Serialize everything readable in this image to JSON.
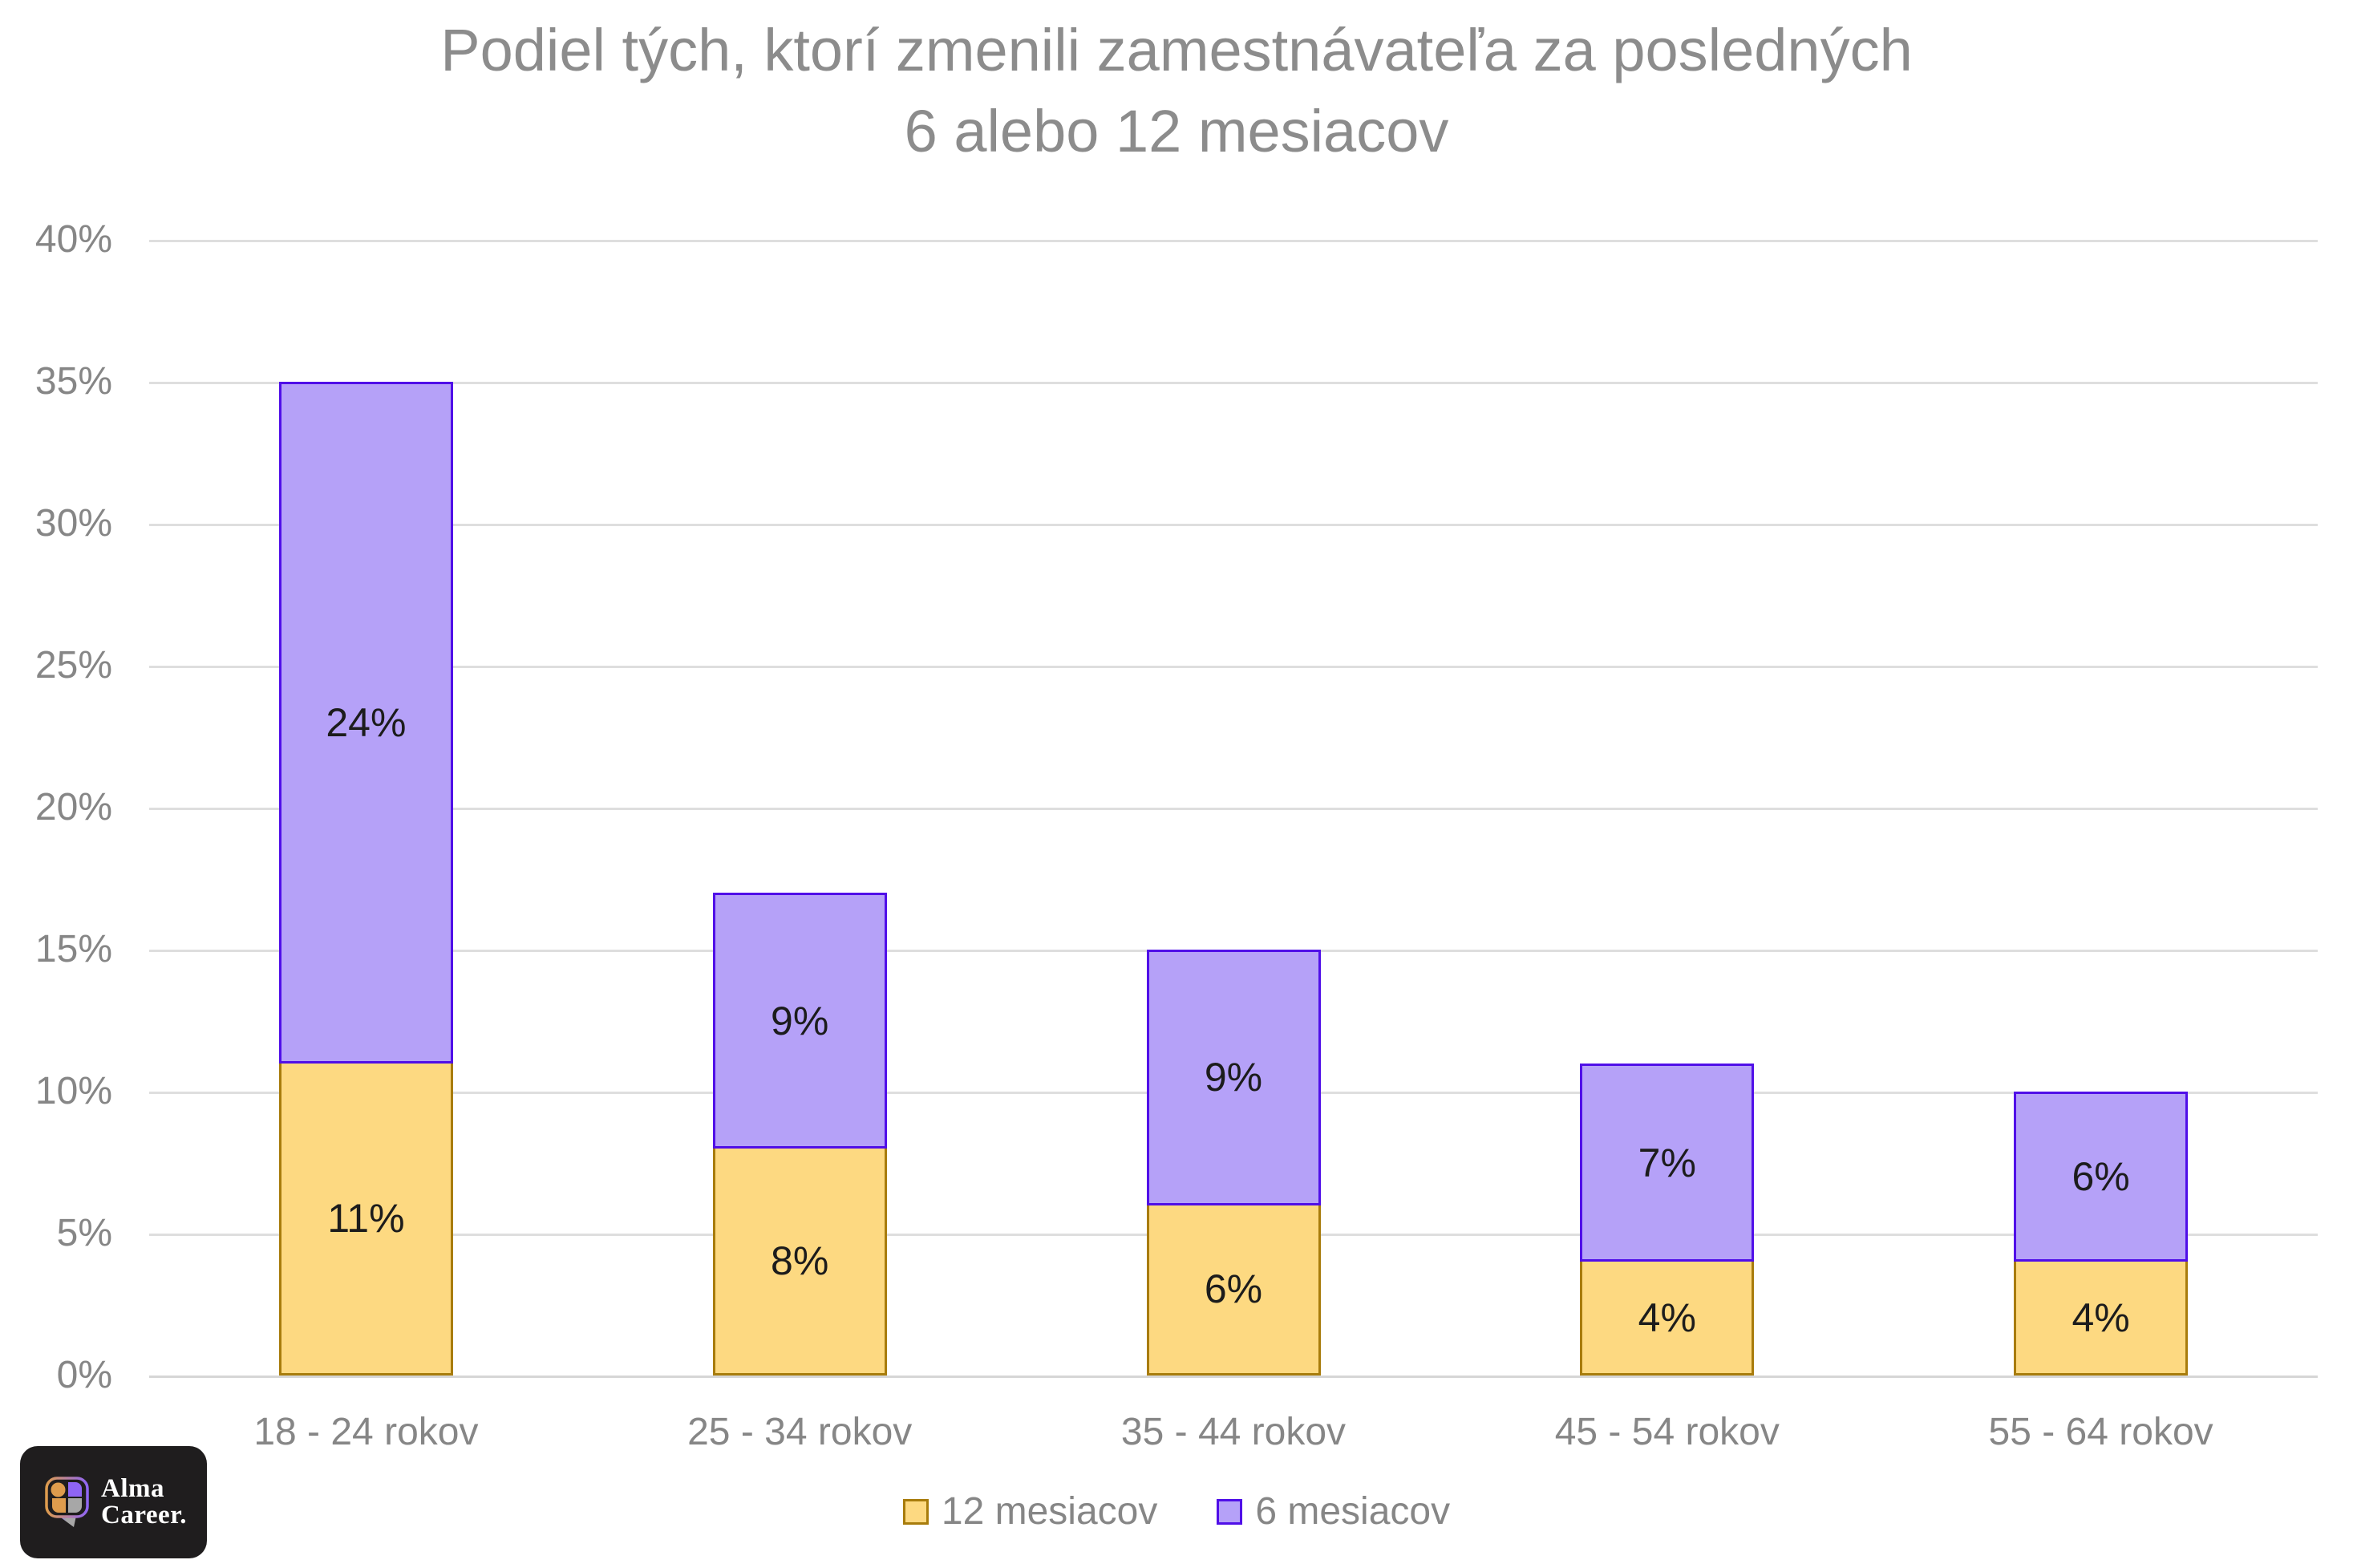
{
  "title": {
    "line1": "Podiel tých, ktorí zmenili zamestnávateľa za posledných",
    "line2": "6 alebo 12 mesiacov"
  },
  "chart_data": {
    "type": "bar",
    "stacked": true,
    "title": "Podiel tých, ktorí zmenili zamestnávateľa za posledných 6 alebo 12 mesiacov",
    "xlabel": "",
    "ylabel": "",
    "categories": [
      "18 - 24 rokov",
      "25 - 34 rokov",
      "35 - 44 rokov",
      "45 - 54 rokov",
      "55 - 64 rokov"
    ],
    "series": [
      {
        "name": "12 mesiacov",
        "values": [
          11,
          8,
          6,
          4,
          4
        ],
        "labels": [
          "11%",
          "8%",
          "6%",
          "4%",
          "4%"
        ],
        "fill_color": "#FDD981",
        "border_color": "#A87C0C"
      },
      {
        "name": "6 mesiacov",
        "values": [
          24,
          9,
          9,
          7,
          6
        ],
        "labels": [
          "24%",
          "9%",
          "9%",
          "7%",
          "6%"
        ],
        "fill_color": "#B5A1F8",
        "border_color": "#500FE8"
      }
    ],
    "stack_totals": [
      35,
      17,
      15,
      11,
      10
    ],
    "ylim": [
      0,
      40
    ],
    "yticks": [
      {
        "value": 0,
        "label": "0%"
      },
      {
        "value": 5,
        "label": "5%"
      },
      {
        "value": 10,
        "label": "10%"
      },
      {
        "value": 15,
        "label": "15%"
      },
      {
        "value": 20,
        "label": "20%"
      },
      {
        "value": 25,
        "label": "25%"
      },
      {
        "value": 30,
        "label": "30%"
      },
      {
        "value": 35,
        "label": "35%"
      },
      {
        "value": 40,
        "label": "40%"
      }
    ],
    "grid": true,
    "legend_position": "bottom",
    "text_color_axis": "#868686",
    "text_color_title": "#8C8C8C",
    "data_label_color": "#1C1C1C"
  },
  "legend": {
    "items": [
      "12 mesiacov",
      "6 mesiacov"
    ]
  },
  "logo": {
    "line1": "Alma",
    "line2": "Career.",
    "background": "#1F1D1E",
    "orange": "#DE9C4D",
    "purple": "#8F65F5",
    "gray": "#A7A7A7"
  }
}
